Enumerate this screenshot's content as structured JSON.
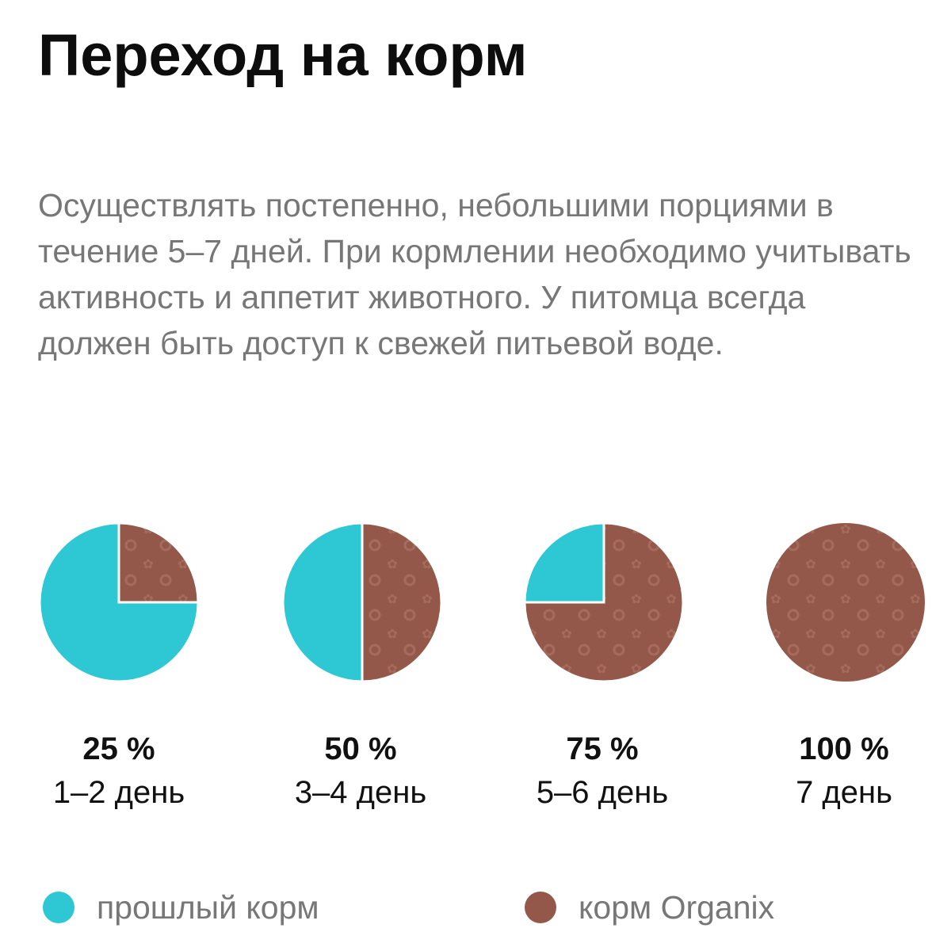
{
  "page": {
    "title": "Переход на корм",
    "description": "Осуществлять постепенно, небольшими порциями в течение 5–7 дней. При кормлении необходимо учитывать активность и аппетит животного. У питомца всегда должен быть доступ к свежей питьевой воде."
  },
  "colors": {
    "previous_food": "#2ec8d4",
    "organix_food": "#94584a",
    "pattern": "#a56b5d"
  },
  "chart_data": {
    "type": "pie",
    "stages": [
      {
        "percent_label": "25 %",
        "days_label": "1–2 день",
        "values": [
          75,
          25
        ]
      },
      {
        "percent_label": "50 %",
        "days_label": "3–4 день",
        "values": [
          50,
          50
        ]
      },
      {
        "percent_label": "75 %",
        "days_label": "5–6 день",
        "values": [
          25,
          75
        ]
      },
      {
        "percent_label": "100 %",
        "days_label": "7 день",
        "values": [
          0,
          100
        ]
      }
    ],
    "series": [
      {
        "name": "прошлый корм"
      },
      {
        "name": "корм Organix"
      }
    ]
  }
}
